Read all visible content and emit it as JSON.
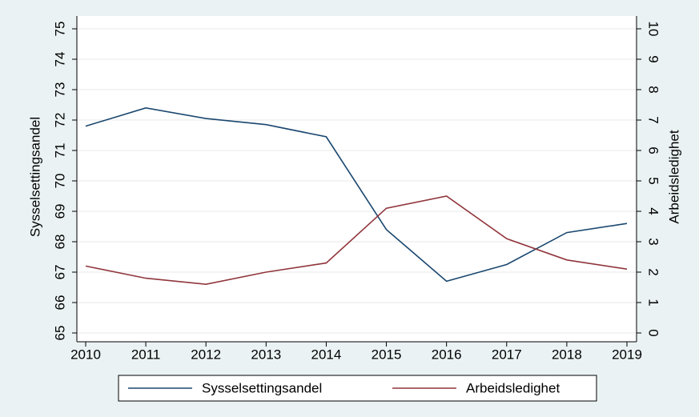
{
  "chart_data": {
    "type": "line",
    "x": [
      2010,
      2011,
      2012,
      2013,
      2014,
      2015,
      2016,
      2017,
      2018,
      2019
    ],
    "xlim": [
      2010,
      2019
    ],
    "xticks": [
      2010,
      2011,
      2012,
      2013,
      2014,
      2015,
      2016,
      2017,
      2018,
      2019
    ],
    "ylabel": "Sysselsettingsandel",
    "ylim": [
      65,
      75
    ],
    "yticks": [
      65,
      66,
      67,
      68,
      69,
      70,
      71,
      72,
      73,
      74,
      75
    ],
    "y2label": "Arbeidsledighet",
    "y2lim": [
      0,
      10
    ],
    "y2ticks": [
      0,
      1,
      2,
      3,
      4,
      5,
      6,
      7,
      8,
      9,
      10
    ],
    "grid": true,
    "series": [
      {
        "name": "Sysselsettingsandel",
        "color": "#1a476f",
        "values": [
          71.8,
          72.4,
          72.05,
          71.85,
          71.45,
          68.4,
          66.7,
          67.25,
          68.3,
          68.6
        ]
      },
      {
        "name": "Arbeidsledighet",
        "color": "#90353b",
        "axis": "y2",
        "values": [
          2.2,
          1.8,
          1.6,
          2.0,
          2.3,
          4.1,
          4.5,
          3.1,
          2.4,
          2.1
        ]
      }
    ]
  }
}
